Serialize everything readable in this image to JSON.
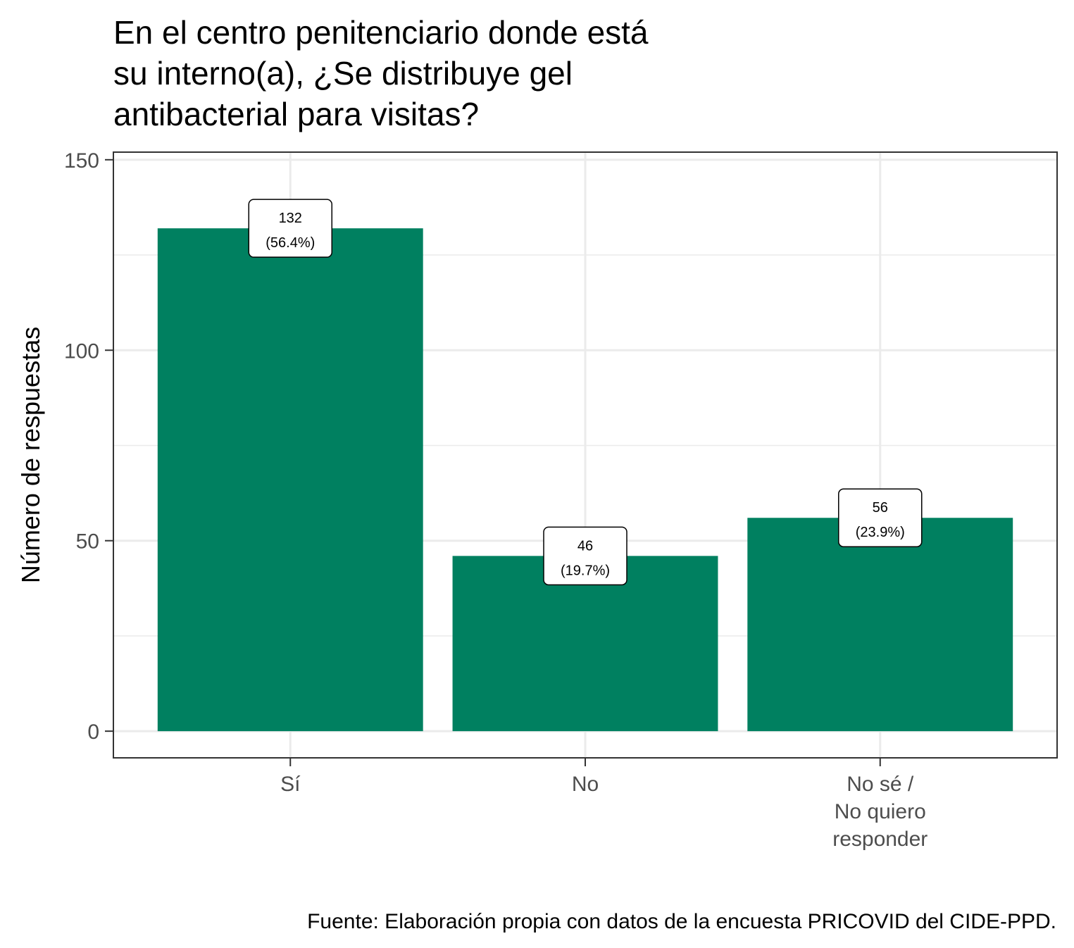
{
  "chart_data": {
    "type": "bar",
    "title_lines": [
      "En el centro penitenciario donde está",
      "su interno(a), ¿Se distribuye gel",
      "antibacterial para visitas?"
    ],
    "categories": [
      [
        "Sí"
      ],
      [
        "No"
      ],
      [
        "No sé /",
        "No quiero",
        "responder"
      ]
    ],
    "values": [
      132,
      46,
      56
    ],
    "percent_labels": [
      "(56.4%)",
      "(19.7%)",
      "(23.9%)"
    ],
    "ylabel": "Número de respuestas",
    "yticks": [
      0,
      50,
      100,
      150
    ],
    "ylim": [
      -7,
      152
    ],
    "grid": true,
    "bar_color": "#008060",
    "caption": "Fuente: Elaboración propia con datos de la encuesta PRICOVID del CIDE-PPD."
  }
}
